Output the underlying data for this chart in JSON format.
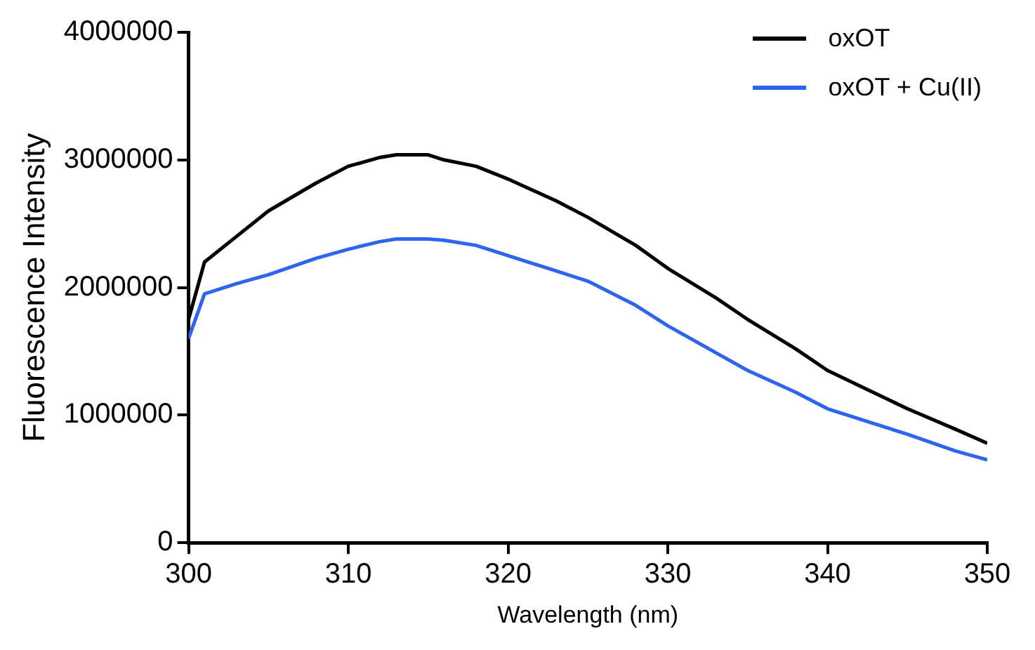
{
  "chart_data": {
    "type": "line",
    "xlabel": "Wavelength (nm)",
    "ylabel": "Fluorescence Intensity",
    "xlim": [
      300,
      350
    ],
    "xticks": [
      300,
      310,
      320,
      330,
      340,
      350
    ],
    "ylim": [
      0,
      4000000
    ],
    "yticks": [
      0,
      1000000,
      2000000,
      3000000,
      4000000
    ],
    "grid": false,
    "legend": "top right",
    "marker": "none",
    "line_style": "solid",
    "x": [
      300,
      301,
      303,
      305,
      308,
      310,
      312,
      313,
      315,
      316,
      318,
      320,
      323,
      325,
      328,
      330,
      333,
      335,
      338,
      340,
      343,
      345,
      348,
      350
    ],
    "series": [
      {
        "name": "oxOT",
        "color": "#000000",
        "values": [
          1750000,
          2200000,
          2400000,
          2600000,
          2820000,
          2950000,
          3020000,
          3040000,
          3040000,
          3000000,
          2950000,
          2850000,
          2680000,
          2550000,
          2330000,
          2150000,
          1920000,
          1750000,
          1520000,
          1350000,
          1170000,
          1050000,
          890000,
          780000
        ]
      },
      {
        "name": "oxOT + Cu(II)",
        "color": "#2e64f0",
        "values": [
          1600000,
          1950000,
          2030000,
          2100000,
          2230000,
          2300000,
          2360000,
          2380000,
          2380000,
          2370000,
          2330000,
          2250000,
          2130000,
          2050000,
          1860000,
          1700000,
          1490000,
          1350000,
          1180000,
          1050000,
          930000,
          850000,
          720000,
          650000
        ]
      }
    ]
  }
}
